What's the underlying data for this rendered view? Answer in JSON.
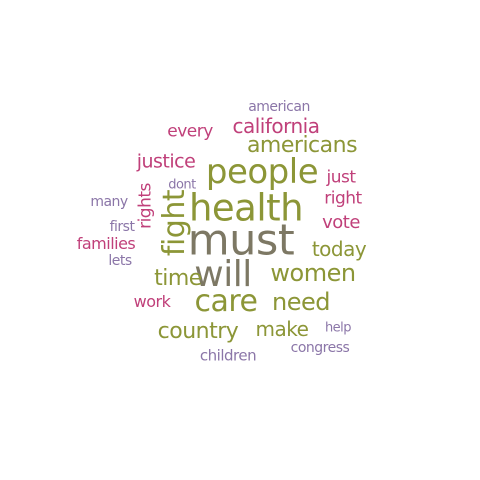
{
  "colors": {
    "olive": "#8c9637",
    "gray": "#7d7864",
    "magenta": "#c0407a",
    "purple": "#8b76a8"
  },
  "words": [
    {
      "text": "must",
      "color": "gray"
    },
    {
      "text": "health",
      "color": "olive"
    },
    {
      "text": "people",
      "color": "olive"
    },
    {
      "text": "will",
      "color": "gray"
    },
    {
      "text": "care",
      "color": "olive"
    },
    {
      "text": "fight",
      "color": "olive"
    },
    {
      "text": "women",
      "color": "olive"
    },
    {
      "text": "need",
      "color": "olive"
    },
    {
      "text": "americans",
      "color": "olive"
    },
    {
      "text": "country",
      "color": "olive"
    },
    {
      "text": "california",
      "color": "magenta"
    },
    {
      "text": "time",
      "color": "olive"
    },
    {
      "text": "make",
      "color": "olive"
    },
    {
      "text": "today",
      "color": "olive"
    },
    {
      "text": "justice",
      "color": "magenta"
    },
    {
      "text": "every",
      "color": "magenta"
    },
    {
      "text": "vote",
      "color": "magenta"
    },
    {
      "text": "rights",
      "color": "magenta"
    },
    {
      "text": "right",
      "color": "magenta"
    },
    {
      "text": "just",
      "color": "magenta"
    },
    {
      "text": "families",
      "color": "magenta"
    },
    {
      "text": "work",
      "color": "magenta"
    },
    {
      "text": "american",
      "color": "purple"
    },
    {
      "text": "many",
      "color": "purple"
    },
    {
      "text": "children",
      "color": "purple"
    },
    {
      "text": "congress",
      "color": "purple"
    },
    {
      "text": "first",
      "color": "purple"
    },
    {
      "text": "lets",
      "color": "purple"
    },
    {
      "text": "dont",
      "color": "purple"
    },
    {
      "text": "help",
      "color": "purple"
    }
  ]
}
